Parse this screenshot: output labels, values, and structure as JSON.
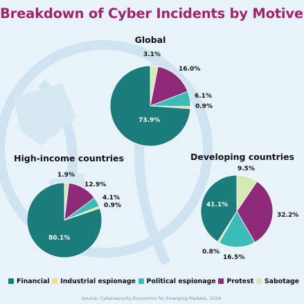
{
  "title": "Breakdown of Cyber Incidents by Motives",
  "source": "Source: Cybersecurity Economics for Emerging Markets, 2024.",
  "legend": [
    {
      "label": "Financial",
      "color": "#1b7d7b"
    },
    {
      "label": "Industrial espionage",
      "color": "#f2d98f"
    },
    {
      "label": "Political espionage",
      "color": "#3cbcb7"
    },
    {
      "label": "Protest",
      "color": "#8f2a79"
    },
    {
      "label": "Sabotage",
      "color": "#d5e9b4"
    }
  ],
  "chart_data": [
    {
      "type": "pie",
      "title": "Global",
      "categories": [
        "Financial",
        "Industrial espionage",
        "Political espionage",
        "Protest",
        "Sabotage"
      ],
      "values": [
        73.9,
        0.9,
        6.1,
        16.0,
        3.1
      ],
      "labels": [
        "73.9%",
        "0.9%",
        "6.1%",
        "16.0%",
        "3.1%"
      ]
    },
    {
      "type": "pie",
      "title": "High-income countries",
      "categories": [
        "Financial",
        "Industrial espionage",
        "Political espionage",
        "Protest",
        "Sabotage"
      ],
      "values": [
        80.1,
        0.9,
        4.1,
        12.9,
        1.9
      ],
      "labels": [
        "80.1%",
        "0.9%",
        "4.1%",
        "12.9%",
        "1.9%"
      ]
    },
    {
      "type": "pie",
      "title": "Developing countries",
      "categories": [
        "Financial",
        "Industrial espionage",
        "Political espionage",
        "Protest",
        "Sabotage"
      ],
      "values": [
        41.1,
        0.8,
        16.5,
        32.2,
        9.5
      ],
      "labels": [
        "41.1%",
        "0.8%",
        "16.5%",
        "32.2%",
        "9.5%"
      ]
    }
  ]
}
